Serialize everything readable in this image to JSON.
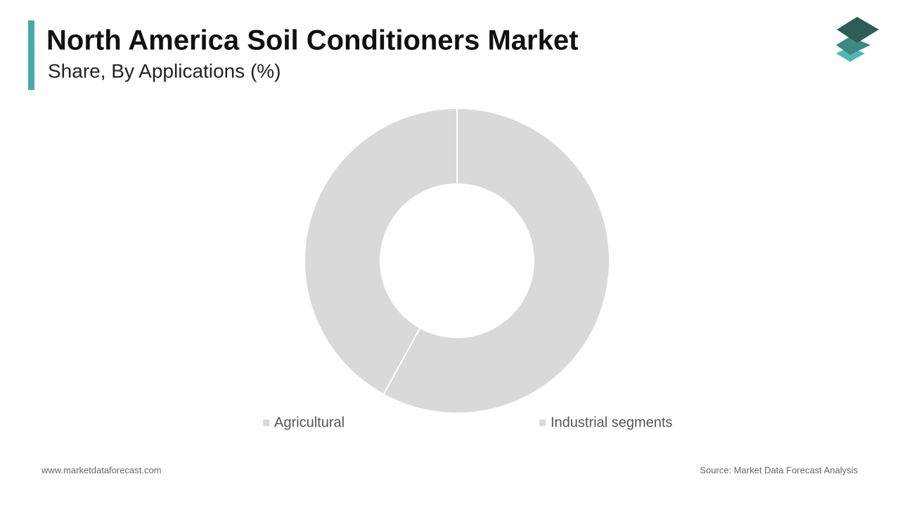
{
  "chart_data": {
    "type": "donut",
    "title": "North America Soil Conditioners Market",
    "subtitle": "Share, By Applications (%)",
    "categories": [
      "Agricultural",
      "Industrial segments"
    ],
    "values": [
      58,
      42
    ],
    "colors": [
      "#d9d9d9",
      "#d9d9d9"
    ]
  },
  "footer": {
    "website": "www.marketdataforecast.com",
    "source": "Source: Market Data Forecast Analysis"
  }
}
